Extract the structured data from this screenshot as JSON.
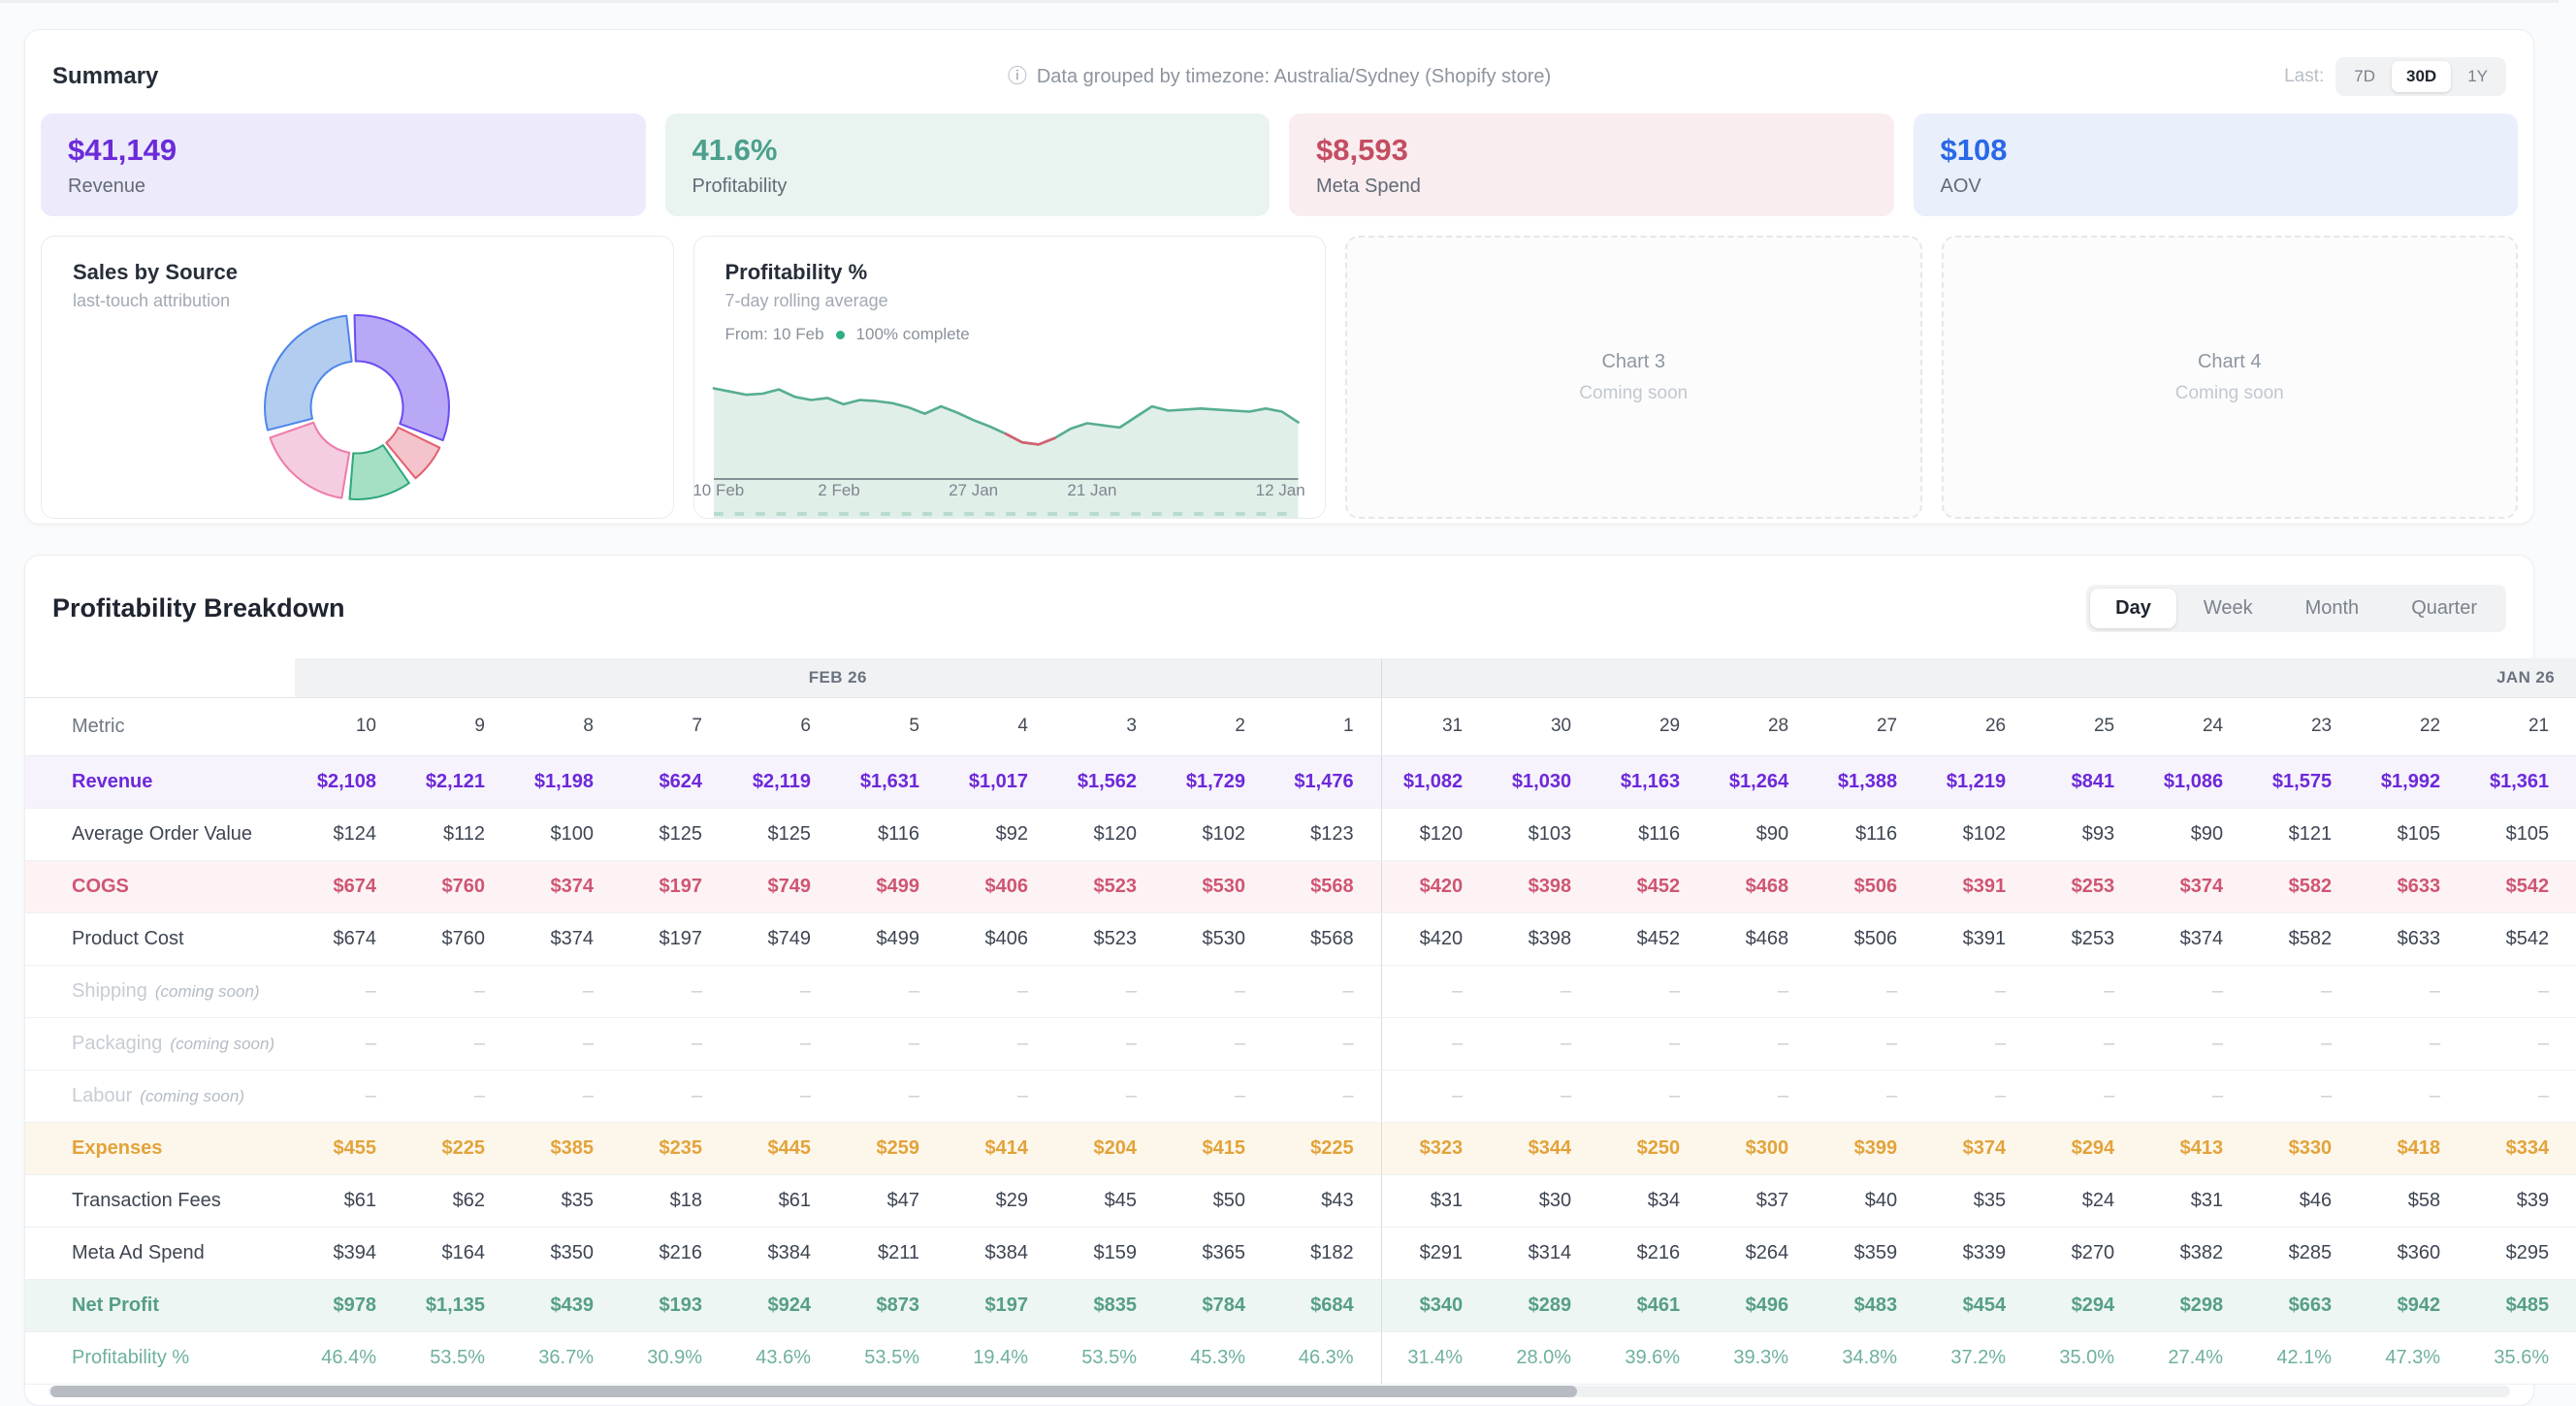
{
  "summary": {
    "title": "Summary",
    "info_text": "Data grouped by timezone: Australia/Sydney (Shopify store)",
    "range_label": "Last:",
    "range_options": [
      "7D",
      "30D",
      "1Y"
    ],
    "range_active": "30D",
    "stats": [
      {
        "value": "$41,149",
        "label": "Revenue",
        "color": "#6c2bd9",
        "bg": "#edeafb"
      },
      {
        "value": "41.6%",
        "label": "Profitability",
        "color": "#4ca08c",
        "bg": "#e9f4f0"
      },
      {
        "value": "$8,593",
        "label": "Meta Spend",
        "color": "#c44d62",
        "bg": "#f9edef"
      },
      {
        "value": "$108",
        "label": "AOV",
        "color": "#2968e8",
        "bg": "#e9effb"
      }
    ]
  },
  "charts": {
    "sales_by_source": {
      "title": "Sales by Source",
      "subtitle": "last-touch attribution"
    },
    "profitability": {
      "title": "Profitability %",
      "subtitle": "7-day rolling average",
      "from_label": "From: 10 Feb",
      "complete_label": "100% complete"
    },
    "placeholders": [
      {
        "title": "Chart 3",
        "subtitle": "Coming soon"
      },
      {
        "title": "Chart 4",
        "subtitle": "Coming soon"
      }
    ]
  },
  "chart_data": [
    {
      "type": "pie",
      "title": "Sales by Source",
      "subtitle": "last-touch attribution",
      "donut": true,
      "legend_position": "none",
      "values": [
        32,
        8,
        12,
        18,
        28
      ],
      "colors_fill": [
        "#b9a8f5",
        "#f4c3cb",
        "#a6e0c4",
        "#f5cde0",
        "#b3cdf0"
      ],
      "colors_stroke": [
        "#6d4cf2",
        "#e2606f",
        "#2fa87d",
        "#ee7bab",
        "#4f86e8"
      ]
    },
    {
      "type": "area",
      "title": "Profitability %",
      "subtitle": "7-day rolling average",
      "x_ticks": [
        "10 Feb",
        "2 Feb",
        "27 Jan",
        "21 Jan",
        "12 Jan"
      ],
      "x_tick_pos": [
        0,
        0.215,
        0.445,
        0.648,
        1.0
      ],
      "x_axis_reversed": true,
      "grid": false,
      "y_approx": [
        53,
        51.5,
        50,
        50.5,
        52.5,
        49,
        47.5,
        48.5,
        45.5,
        47.5,
        47,
        46,
        44,
        41,
        44.5,
        41.5,
        38,
        35,
        31.5,
        27.5,
        26.5,
        29.5,
        34,
        36.5,
        35.5,
        34.5,
        39.5,
        44.5,
        42.5,
        43,
        43.5,
        43,
        42.5,
        42,
        43.5,
        42,
        37
      ],
      "red_segment_indices": [
        18,
        21
      ],
      "line_color": "#57ae91",
      "fill_color": "#e1efe9",
      "red_color": "#d4606e"
    }
  ],
  "breakdown": {
    "title": "Profitability Breakdown",
    "tabs": [
      "Day",
      "Week",
      "Month",
      "Quarter"
    ],
    "tab_active": "Day",
    "table": {
      "metric_header": "Metric",
      "groups": [
        {
          "label": "FEB 26",
          "span": 10,
          "align": "center"
        },
        {
          "label": "JAN 26",
          "span": 11,
          "align": "right"
        }
      ],
      "columns": [
        "10",
        "9",
        "8",
        "7",
        "6",
        "5",
        "4",
        "3",
        "2",
        "1",
        "31",
        "30",
        "29",
        "28",
        "27",
        "26",
        "25",
        "24",
        "23",
        "22",
        "21"
      ],
      "month_divider_after_col": 9,
      "rows": [
        {
          "label": "Revenue",
          "theme": "purple",
          "values": [
            "$2,108",
            "$2,121",
            "$1,198",
            "$624",
            "$2,119",
            "$1,631",
            "$1,017",
            "$1,562",
            "$1,729",
            "$1,476",
            "$1,082",
            "$1,030",
            "$1,163",
            "$1,264",
            "$1,388",
            "$1,219",
            "$841",
            "$1,086",
            "$1,575",
            "$1,992",
            "$1,361"
          ]
        },
        {
          "label": "Average Order Value",
          "theme": "sub",
          "values": [
            "$124",
            "$112",
            "$100",
            "$125",
            "$125",
            "$116",
            "$92",
            "$120",
            "$102",
            "$123",
            "$120",
            "$103",
            "$116",
            "$90",
            "$116",
            "$102",
            "$93",
            "$90",
            "$121",
            "$105",
            "$105"
          ]
        },
        {
          "label": "COGS",
          "theme": "red",
          "values": [
            "$674",
            "$760",
            "$374",
            "$197",
            "$749",
            "$499",
            "$406",
            "$523",
            "$530",
            "$568",
            "$420",
            "$398",
            "$452",
            "$468",
            "$506",
            "$391",
            "$253",
            "$374",
            "$582",
            "$633",
            "$542"
          ]
        },
        {
          "label": "Product Cost",
          "theme": "sub",
          "values": [
            "$674",
            "$760",
            "$374",
            "$197",
            "$749",
            "$499",
            "$406",
            "$523",
            "$530",
            "$568",
            "$420",
            "$398",
            "$452",
            "$468",
            "$506",
            "$391",
            "$253",
            "$374",
            "$582",
            "$633",
            "$542"
          ]
        },
        {
          "label": "Shipping",
          "suffix": "(coming soon)",
          "theme": "muted",
          "values": null
        },
        {
          "label": "Packaging",
          "suffix": "(coming soon)",
          "theme": "muted",
          "values": null
        },
        {
          "label": "Labour",
          "suffix": "(coming soon)",
          "theme": "muted",
          "values": null
        },
        {
          "label": "Expenses",
          "theme": "orange",
          "values": [
            "$455",
            "$225",
            "$385",
            "$235",
            "$445",
            "$259",
            "$414",
            "$204",
            "$415",
            "$225",
            "$323",
            "$344",
            "$250",
            "$300",
            "$399",
            "$374",
            "$294",
            "$413",
            "$330",
            "$418",
            "$334"
          ]
        },
        {
          "label": "Transaction Fees",
          "theme": "sub",
          "values": [
            "$61",
            "$62",
            "$35",
            "$18",
            "$61",
            "$47",
            "$29",
            "$45",
            "$50",
            "$43",
            "$31",
            "$30",
            "$34",
            "$37",
            "$40",
            "$35",
            "$24",
            "$31",
            "$46",
            "$58",
            "$39"
          ]
        },
        {
          "label": "Meta Ad Spend",
          "theme": "sub",
          "values": [
            "$394",
            "$164",
            "$350",
            "$216",
            "$384",
            "$211",
            "$384",
            "$159",
            "$365",
            "$182",
            "$291",
            "$314",
            "$216",
            "$264",
            "$359",
            "$339",
            "$270",
            "$382",
            "$285",
            "$360",
            "$295"
          ]
        },
        {
          "label": "Net Profit",
          "theme": "teal",
          "values": [
            "$978",
            "$1,135",
            "$439",
            "$193",
            "$924",
            "$873",
            "$197",
            "$835",
            "$784",
            "$684",
            "$340",
            "$289",
            "$461",
            "$496",
            "$483",
            "$454",
            "$294",
            "$298",
            "$663",
            "$942",
            "$485"
          ]
        },
        {
          "label": "Profitability %",
          "theme": "tealsub",
          "values": [
            "46.4%",
            "53.5%",
            "36.7%",
            "30.9%",
            "43.6%",
            "53.5%",
            "19.4%",
            "53.5%",
            "45.3%",
            "46.3%",
            "31.4%",
            "28.0%",
            "39.6%",
            "39.3%",
            "34.8%",
            "37.2%",
            "35.0%",
            "27.4%",
            "42.1%",
            "47.3%",
            "35.6%"
          ]
        }
      ],
      "placeholder_dash": "–"
    }
  }
}
